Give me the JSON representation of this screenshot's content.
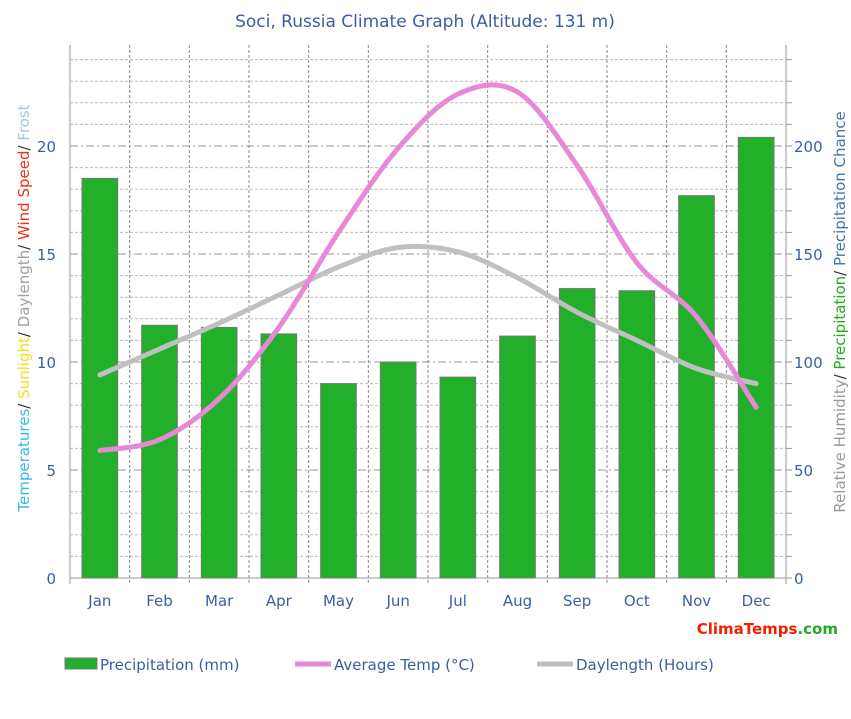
{
  "chart_data": {
    "type": "bar+line",
    "title": "Soci, Russia Climate Graph (Altitude: 131 m)",
    "categories": [
      "Jan",
      "Feb",
      "Mar",
      "Apr",
      "May",
      "Jun",
      "Jul",
      "Aug",
      "Sep",
      "Oct",
      "Nov",
      "Dec"
    ],
    "left_axis": {
      "label_parts": [
        {
          "text": "Temperatures",
          "color": "#33bbee"
        },
        {
          "text": "/ ",
          "color": "#333333"
        },
        {
          "text": "Sunlight",
          "color": "#f0e020"
        },
        {
          "text": "/ ",
          "color": "#333333"
        },
        {
          "text": "Daylength",
          "color": "#a0a0a0"
        },
        {
          "text": "/ ",
          "color": "#333333"
        },
        {
          "text": "Wind Speed",
          "color": "#ee3311"
        },
        {
          "text": "/ ",
          "color": "#333333"
        },
        {
          "text": "Frost",
          "color": "#99ccdd"
        }
      ],
      "ticks": [
        "0",
        "5",
        "10",
        "15",
        "20"
      ],
      "ylim": [
        0,
        24.6
      ]
    },
    "right_axis": {
      "label_parts": [
        {
          "text": "Relative Humidity",
          "color": "#999999"
        },
        {
          "text": "/ ",
          "color": "#333333"
        },
        {
          "text": "Precipitation",
          "color": "#22aa22"
        },
        {
          "text": "/ ",
          "color": "#333333"
        },
        {
          "text": "Precipitation Chance",
          "color": "#4477aa"
        }
      ],
      "ticks": [
        "0",
        "50",
        "100",
        "150",
        "200"
      ],
      "ylim": [
        0,
        246
      ]
    },
    "grid": true,
    "series": [
      {
        "name": "Precipitation (mm)",
        "type": "bar",
        "axis": "right",
        "color": "#22b02b",
        "values": [
          185,
          117,
          116,
          113,
          90,
          100,
          93,
          112,
          134,
          133,
          177,
          204
        ]
      },
      {
        "name": "Average Temp (°C)",
        "type": "line",
        "axis": "left",
        "color": "#e888d8",
        "values": [
          5.9,
          6.4,
          8.3,
          11.6,
          16.0,
          19.9,
          22.4,
          22.5,
          19.1,
          14.6,
          12.1,
          7.9
        ]
      },
      {
        "name": "Daylength (Hours)",
        "type": "line",
        "axis": "left",
        "color": "#c0c0c0",
        "values": [
          9.4,
          10.6,
          11.8,
          13.1,
          14.4,
          15.3,
          15.1,
          13.9,
          12.3,
          11.0,
          9.7,
          9.0
        ]
      }
    ],
    "legend_position": "bottom"
  },
  "brand": {
    "clima": "Clima",
    "temps": "Temps",
    ".com": ".com"
  }
}
